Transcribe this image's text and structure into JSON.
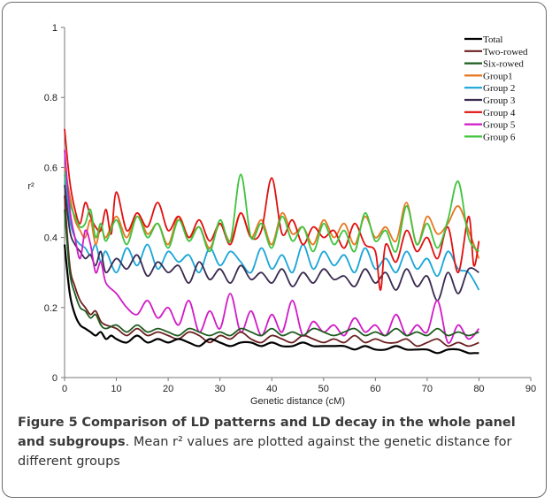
{
  "caption": {
    "label": "Figure 5",
    "title": "Comparison of LD patterns and LD decay in the whole panel and subgroups",
    "text": ". Mean r² values are plotted against the genetic distance for different groups"
  },
  "chart_data": {
    "type": "line",
    "title": "",
    "xlabel": "Genetic distance (cM)",
    "ylabel": "r²",
    "xlim": [
      0,
      90
    ],
    "ylim": [
      0,
      1
    ],
    "xticks": [
      0,
      10,
      20,
      30,
      40,
      50,
      60,
      70,
      80,
      90
    ],
    "yticks": [
      0,
      0.2,
      0.4,
      0.6,
      0.8,
      1
    ],
    "ytick_labels": [
      "0",
      "0.2",
      "0.4",
      "0.6",
      "0.8",
      "1"
    ],
    "grid": false,
    "legend_position": "top-right",
    "series": [
      {
        "name": "Total",
        "color": "#000000",
        "x": [
          0,
          1,
          2,
          3,
          4,
          5,
          6,
          7,
          8,
          9,
          10,
          12,
          14,
          16,
          18,
          20,
          22,
          24,
          26,
          28,
          30,
          32,
          34,
          36,
          38,
          40,
          42,
          44,
          46,
          48,
          50,
          52,
          54,
          56,
          58,
          60,
          62,
          64,
          66,
          68,
          70,
          72,
          74,
          76,
          78,
          79,
          80
        ],
        "y": [
          0.38,
          0.24,
          0.18,
          0.15,
          0.14,
          0.13,
          0.12,
          0.13,
          0.11,
          0.12,
          0.11,
          0.1,
          0.12,
          0.1,
          0.11,
          0.1,
          0.11,
          0.1,
          0.09,
          0.11,
          0.1,
          0.09,
          0.1,
          0.1,
          0.09,
          0.1,
          0.09,
          0.09,
          0.1,
          0.09,
          0.09,
          0.09,
          0.09,
          0.08,
          0.09,
          0.08,
          0.08,
          0.09,
          0.08,
          0.08,
          0.08,
          0.07,
          0.08,
          0.08,
          0.07,
          0.07,
          0.07
        ]
      },
      {
        "name": "Two-rowed",
        "color": "#6b1f1f",
        "x": [
          0,
          1,
          2,
          3,
          4,
          5,
          6,
          7,
          8,
          10,
          12,
          14,
          16,
          18,
          20,
          22,
          24,
          26,
          28,
          30,
          32,
          34,
          36,
          38,
          40,
          42,
          44,
          46,
          48,
          50,
          52,
          54,
          56,
          58,
          60,
          62,
          64,
          66,
          68,
          70,
          72,
          74,
          76,
          78,
          80
        ],
        "y": [
          0.52,
          0.32,
          0.26,
          0.22,
          0.2,
          0.18,
          0.19,
          0.16,
          0.15,
          0.14,
          0.12,
          0.14,
          0.12,
          0.13,
          0.12,
          0.11,
          0.13,
          0.12,
          0.1,
          0.12,
          0.11,
          0.13,
          0.11,
          0.1,
          0.12,
          0.11,
          0.1,
          0.12,
          0.11,
          0.1,
          0.11,
          0.1,
          0.12,
          0.1,
          0.11,
          0.1,
          0.1,
          0.11,
          0.09,
          0.1,
          0.11,
          0.09,
          0.1,
          0.09,
          0.1
        ]
      },
      {
        "name": "Six-rowed",
        "color": "#1e5c1e",
        "x": [
          0,
          1,
          2,
          3,
          4,
          5,
          6,
          7,
          8,
          10,
          12,
          14,
          16,
          18,
          20,
          22,
          24,
          26,
          28,
          30,
          32,
          34,
          36,
          38,
          40,
          42,
          44,
          46,
          48,
          50,
          52,
          54,
          56,
          58,
          60,
          62,
          64,
          66,
          68,
          70,
          72,
          74,
          76,
          78,
          80
        ],
        "y": [
          0.48,
          0.3,
          0.24,
          0.2,
          0.19,
          0.17,
          0.18,
          0.15,
          0.14,
          0.15,
          0.13,
          0.15,
          0.13,
          0.14,
          0.13,
          0.12,
          0.14,
          0.13,
          0.12,
          0.13,
          0.12,
          0.14,
          0.13,
          0.12,
          0.14,
          0.12,
          0.13,
          0.12,
          0.14,
          0.13,
          0.12,
          0.13,
          0.14,
          0.12,
          0.13,
          0.12,
          0.14,
          0.12,
          0.13,
          0.12,
          0.14,
          0.12,
          0.13,
          0.12,
          0.13
        ]
      },
      {
        "name": "Group1",
        "color": "#e87722",
        "x": [
          0,
          1,
          2,
          3,
          4,
          5,
          6,
          7,
          8,
          10,
          12,
          14,
          16,
          18,
          20,
          22,
          24,
          26,
          28,
          30,
          32,
          34,
          36,
          38,
          40,
          42,
          44,
          46,
          48,
          50,
          52,
          54,
          56,
          58,
          60,
          62,
          64,
          66,
          68,
          70,
          72,
          74,
          76,
          78,
          80
        ],
        "y": [
          0.6,
          0.52,
          0.45,
          0.42,
          0.4,
          0.45,
          0.38,
          0.43,
          0.4,
          0.46,
          0.4,
          0.47,
          0.41,
          0.44,
          0.38,
          0.46,
          0.4,
          0.43,
          0.37,
          0.44,
          0.39,
          0.47,
          0.4,
          0.45,
          0.38,
          0.47,
          0.41,
          0.43,
          0.38,
          0.45,
          0.4,
          0.44,
          0.38,
          0.46,
          0.4,
          0.43,
          0.39,
          0.5,
          0.38,
          0.46,
          0.41,
          0.44,
          0.49,
          0.42,
          0.34
        ]
      },
      {
        "name": "Group 2",
        "color": "#1aa5d8",
        "x": [
          0,
          1,
          2,
          3,
          4,
          5,
          6,
          7,
          8,
          10,
          12,
          14,
          16,
          18,
          20,
          22,
          24,
          26,
          28,
          30,
          32,
          34,
          36,
          38,
          40,
          42,
          44,
          46,
          48,
          50,
          52,
          54,
          56,
          58,
          60,
          62,
          64,
          66,
          68,
          70,
          72,
          74,
          76,
          78,
          80
        ],
        "y": [
          0.58,
          0.45,
          0.4,
          0.38,
          0.37,
          0.35,
          0.38,
          0.33,
          0.36,
          0.3,
          0.37,
          0.32,
          0.38,
          0.31,
          0.36,
          0.33,
          0.35,
          0.3,
          0.37,
          0.32,
          0.36,
          0.33,
          0.3,
          0.37,
          0.31,
          0.35,
          0.3,
          0.38,
          0.31,
          0.36,
          0.32,
          0.35,
          0.3,
          0.37,
          0.31,
          0.34,
          0.3,
          0.36,
          0.31,
          0.34,
          0.29,
          0.36,
          0.31,
          0.3,
          0.25
        ]
      },
      {
        "name": "Group 3",
        "color": "#3a2a50",
        "x": [
          0,
          1,
          2,
          3,
          4,
          5,
          6,
          7,
          8,
          10,
          12,
          14,
          16,
          18,
          20,
          22,
          24,
          26,
          28,
          30,
          32,
          34,
          36,
          38,
          40,
          42,
          44,
          46,
          48,
          50,
          52,
          54,
          56,
          58,
          60,
          62,
          64,
          66,
          68,
          70,
          72,
          74,
          76,
          78,
          80
        ],
        "y": [
          0.55,
          0.42,
          0.38,
          0.36,
          0.34,
          0.35,
          0.32,
          0.36,
          0.3,
          0.34,
          0.31,
          0.35,
          0.29,
          0.33,
          0.3,
          0.32,
          0.27,
          0.33,
          0.28,
          0.31,
          0.27,
          0.32,
          0.28,
          0.3,
          0.27,
          0.31,
          0.26,
          0.3,
          0.27,
          0.31,
          0.28,
          0.29,
          0.26,
          0.31,
          0.27,
          0.3,
          0.25,
          0.31,
          0.26,
          0.29,
          0.22,
          0.3,
          0.24,
          0.31,
          0.3
        ]
      },
      {
        "name": "Group 4",
        "color": "#e01010",
        "x": [
          0,
          1,
          2,
          3,
          4,
          5,
          6,
          7,
          8,
          9,
          10,
          12,
          14,
          16,
          18,
          20,
          22,
          24,
          26,
          28,
          30,
          32,
          34,
          36,
          38,
          40,
          42,
          44,
          46,
          48,
          50,
          52,
          54,
          56,
          58,
          60,
          61,
          62,
          64,
          66,
          68,
          70,
          72,
          74,
          76,
          78,
          79,
          80
        ],
        "y": [
          0.71,
          0.56,
          0.48,
          0.44,
          0.5,
          0.46,
          0.43,
          0.42,
          0.48,
          0.41,
          0.53,
          0.42,
          0.47,
          0.43,
          0.5,
          0.42,
          0.46,
          0.4,
          0.45,
          0.39,
          0.44,
          0.38,
          0.47,
          0.4,
          0.42,
          0.57,
          0.41,
          0.45,
          0.38,
          0.43,
          0.4,
          0.42,
          0.37,
          0.44,
          0.38,
          0.36,
          0.25,
          0.38,
          0.33,
          0.42,
          0.36,
          0.4,
          0.34,
          0.43,
          0.3,
          0.46,
          0.32,
          0.39
        ]
      },
      {
        "name": "Group 5",
        "color": "#d11bc7",
        "x": [
          0,
          1,
          2,
          3,
          4,
          5,
          6,
          7,
          8,
          10,
          12,
          14,
          16,
          18,
          20,
          22,
          24,
          26,
          28,
          30,
          32,
          34,
          36,
          38,
          40,
          42,
          44,
          46,
          48,
          50,
          52,
          54,
          56,
          58,
          60,
          62,
          64,
          66,
          68,
          70,
          72,
          74,
          76,
          78,
          80
        ],
        "y": [
          0.65,
          0.48,
          0.4,
          0.34,
          0.42,
          0.38,
          0.3,
          0.33,
          0.27,
          0.24,
          0.2,
          0.18,
          0.22,
          0.17,
          0.2,
          0.15,
          0.22,
          0.13,
          0.19,
          0.14,
          0.24,
          0.13,
          0.19,
          0.12,
          0.18,
          0.13,
          0.22,
          0.12,
          0.16,
          0.13,
          0.15,
          0.12,
          0.17,
          0.13,
          0.15,
          0.12,
          0.18,
          0.12,
          0.15,
          0.13,
          0.22,
          0.1,
          0.15,
          0.11,
          0.14
        ]
      },
      {
        "name": "Group 6",
        "color": "#3ec43e",
        "x": [
          0,
          1,
          2,
          3,
          4,
          5,
          6,
          7,
          8,
          10,
          12,
          14,
          16,
          18,
          20,
          22,
          24,
          26,
          28,
          30,
          32,
          34,
          36,
          38,
          40,
          42,
          44,
          46,
          48,
          50,
          52,
          54,
          56,
          58,
          60,
          62,
          64,
          66,
          68,
          70,
          72,
          74,
          76,
          78,
          80
        ],
        "y": [
          0.59,
          0.5,
          0.46,
          0.43,
          0.44,
          0.48,
          0.4,
          0.44,
          0.39,
          0.45,
          0.38,
          0.46,
          0.4,
          0.44,
          0.37,
          0.45,
          0.39,
          0.43,
          0.36,
          0.45,
          0.39,
          0.58,
          0.4,
          0.44,
          0.37,
          0.46,
          0.39,
          0.43,
          0.36,
          0.44,
          0.38,
          0.42,
          0.36,
          0.47,
          0.39,
          0.42,
          0.36,
          0.49,
          0.38,
          0.44,
          0.37,
          0.45,
          0.56,
          0.4,
          0.36
        ]
      }
    ]
  }
}
